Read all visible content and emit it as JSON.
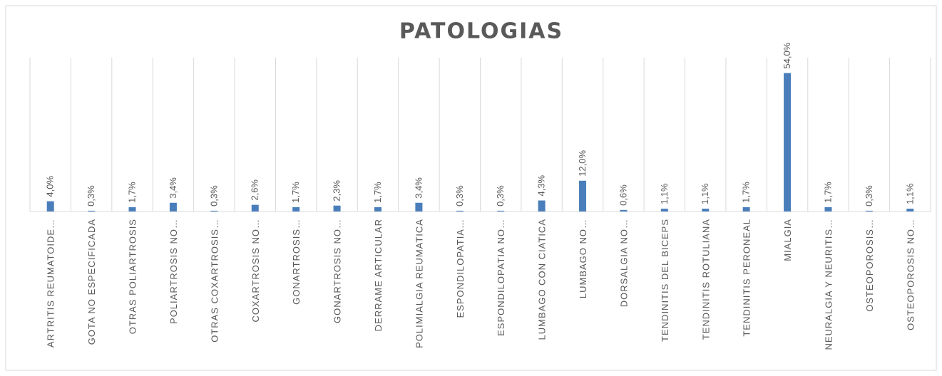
{
  "chart_data": {
    "type": "bar",
    "title": "PATOLOGIAS",
    "categories": [
      "ARTRITIS REUMATOIDE…",
      "GOTA NO ESPECIFICADA",
      "OTRAS POLIARTROSIS",
      "POLIARTROSIS NO…",
      "OTRAS COXARTROSIS…",
      "COXARTROSIS NO…",
      "GONARTROSIS…",
      "GONARTROSIS NO…",
      "DERRAME ARTICULAR",
      "POLIMIALGIA REUMATICA",
      "ESPONDILOPATIA…",
      "ESPONDILOPATIA NO…",
      "LUMBAGO CON CIATICA",
      "LUMBAGO NO…",
      "DORSALGIA NO…",
      "TENDINITIS DEL BICEPS",
      "TENDINITIS ROTULIANA",
      "TENDINITIS PERONEAL",
      "MIALGIA",
      "NEURALGIA Y NEURITIS…",
      "OSTEOPOROSIS…",
      "OSTEOPOROSIS NO…"
    ],
    "values": [
      4.0,
      0.3,
      1.7,
      3.4,
      0.3,
      2.6,
      1.7,
      2.3,
      1.7,
      3.4,
      0.3,
      0.3,
      4.3,
      12.0,
      0.6,
      1.1,
      1.1,
      1.7,
      54.0,
      1.7,
      0.3,
      1.1
    ],
    "value_labels": [
      "4,0%",
      "0,3%",
      "1,7%",
      "3,4%",
      "0,3%",
      "2,6%",
      "1,7%",
      "2,3%",
      "1,7%",
      "3,4%",
      "0,3%",
      "0,3%",
      "4,3%",
      "12,0%",
      "0,6%",
      "1,1%",
      "1,1%",
      "1,7%",
      "54,0%",
      "1,7%",
      "0,3%",
      "1,1%"
    ],
    "color": "#4a7ebb",
    "ylim": [
      0,
      60
    ]
  }
}
